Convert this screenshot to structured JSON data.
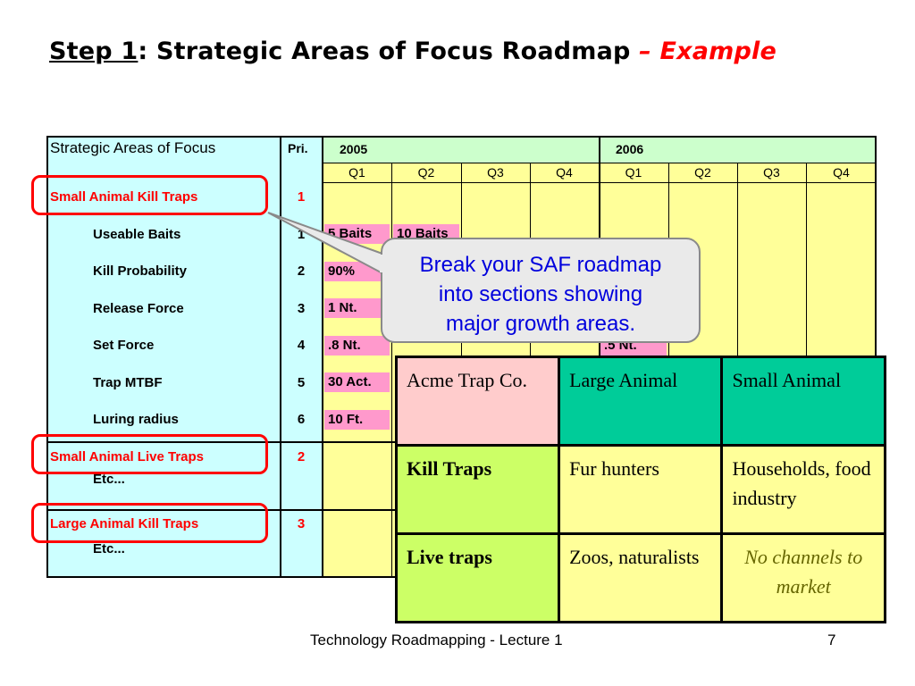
{
  "title": {
    "step": "Step 1",
    "colon": ":",
    "main": " Strategic Areas of Focus Roadmap ",
    "dash": "– ",
    "example": "Example"
  },
  "roadmap": {
    "header_saf": "Strategic Areas of Focus",
    "header_pri": "Pri.",
    "years": [
      "2005",
      "2006"
    ],
    "quarters": [
      "Q1",
      "Q2",
      "Q3",
      "Q4",
      "Q1",
      "Q2",
      "Q3",
      "Q4"
    ],
    "sections": [
      {
        "label": "Small Animal Kill Traps",
        "pri": "1"
      },
      {
        "label": "Small Animal Live Traps",
        "pri": "2"
      },
      {
        "label": "Large Animal Kill Traps",
        "pri": "3"
      }
    ],
    "rows": [
      {
        "label": "Useable Baits",
        "pri": "1",
        "q1": "5 Baits",
        "q2": "10 Baits",
        "q5": ""
      },
      {
        "label": "Kill Probability",
        "pri": "2",
        "q1": "90%",
        "q2": "",
        "q5": ""
      },
      {
        "label": "Release Force",
        "pri": "3",
        "q1": "1 Nt.",
        "q2": "",
        "q5": ""
      },
      {
        "label": "Set Force",
        "pri": "4",
        "q1": ".8 Nt.",
        "q2": "",
        "q5": ".5 Nt."
      },
      {
        "label": "Trap MTBF",
        "pri": "5",
        "q1": "30 Act.",
        "q2": "",
        "q5": ""
      },
      {
        "label": "Luring radius",
        "pri": "6",
        "q1": "10 Ft.",
        "q2": "",
        "q5": ""
      }
    ],
    "etc1": "Etc...",
    "etc2": "Etc..."
  },
  "callout": {
    "line1": "Break your SAF roadmap",
    "line2": "into sections showing",
    "line3": "major growth areas."
  },
  "matrix": {
    "corner": "Acme Trap Co.",
    "col1": "Large Animal",
    "col2": "Small Animal",
    "row1": {
      "label": "Kill Traps",
      "large": "Fur hunters",
      "small": "Households, food industry"
    },
    "row2": {
      "label": "Live traps",
      "large": "Zoos, naturalists",
      "small": "No channels to market"
    }
  },
  "footer": {
    "text": "Technology Roadmapping - Lecture 1",
    "page": "7"
  },
  "colors": {
    "cyan": "#ccffff",
    "yellow": "#ffff99",
    "green_header": "#ccffcc",
    "pink": "#ff99cc",
    "teal": "#00cc99",
    "lime": "#ccff66",
    "salmon": "#ffcccc",
    "callout_text": "#0000dd"
  }
}
